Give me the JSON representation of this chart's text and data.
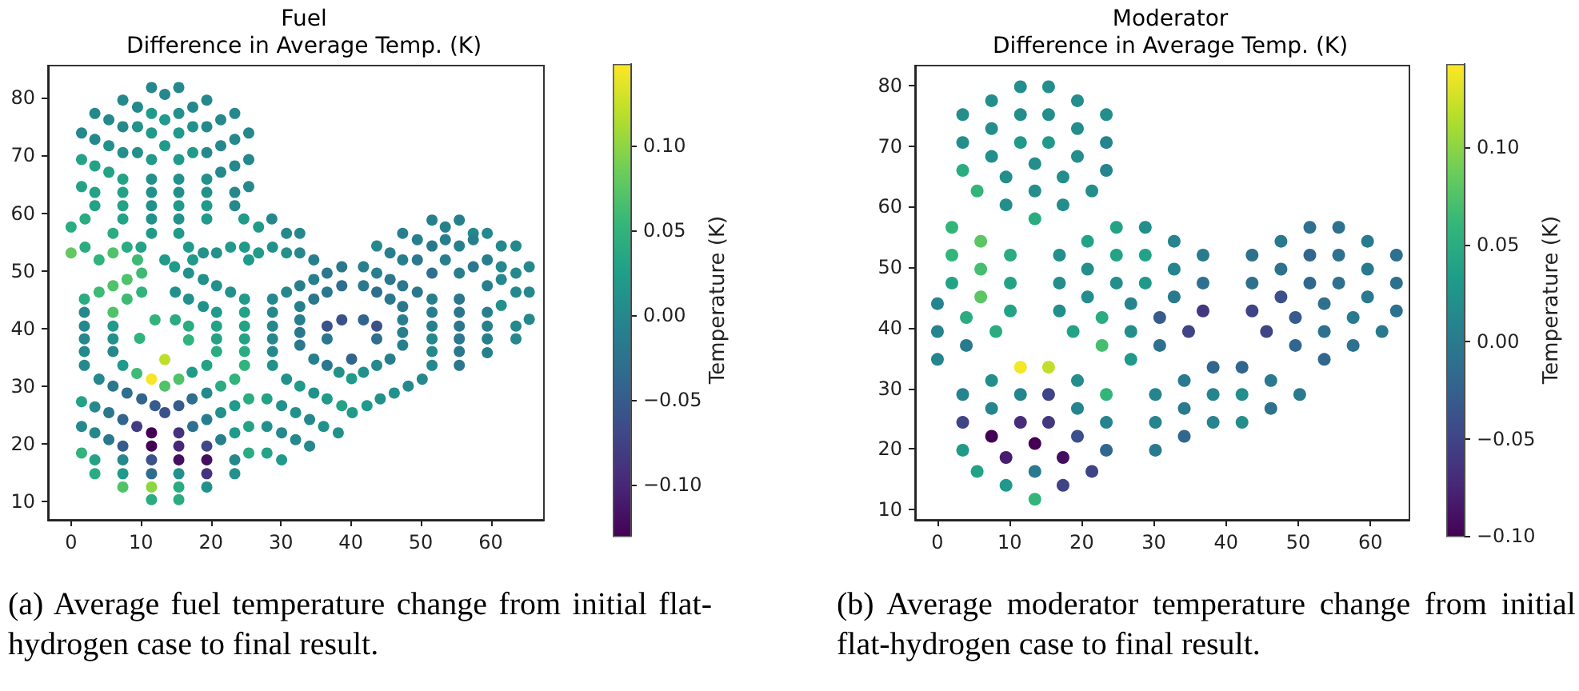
{
  "chart_data": [
    {
      "type": "scatter",
      "title": "Fuel",
      "subtitle": "Difference in Average Temp. (K)",
      "clabel": "Temperature (K)",
      "marker": "circle",
      "grid": false,
      "xlim": [
        -3.3,
        67.6
      ],
      "ylim": [
        6.8,
        85.6
      ],
      "xticks": [
        0,
        10,
        20,
        30,
        40,
        50,
        60
      ],
      "yticks": [
        10,
        20,
        30,
        40,
        50,
        60,
        70,
        80
      ],
      "clim": [
        -0.13,
        0.148
      ],
      "cticks": [
        {
          "value": -0.1,
          "label": "−0.10"
        },
        {
          "value": -0.05,
          "label": "−0.05"
        },
        {
          "value": 0,
          "label": "0.00"
        },
        {
          "value": 0.05,
          "label": "0.05"
        },
        {
          "value": 0.1,
          "label": "0.10"
        }
      ],
      "annotations": [
        "(a) Average fuel temperature change from initial flat-hydrogen case to final result."
      ],
      "x": [
        11.5,
        15.4,
        13.4,
        7.4,
        19.4,
        9.5,
        17.4,
        3.4,
        11.5,
        15.4,
        23.4,
        5.4,
        13.4,
        21.4,
        7.4,
        9.5,
        17.4,
        19.4,
        1.5,
        11.5,
        15.4,
        25.4,
        3.4,
        23.4,
        5.4,
        13.4,
        21.4,
        7.4,
        9.5,
        17.4,
        19.4,
        1.5,
        11.5,
        15.4,
        25.4,
        3.4,
        23.4,
        5.4,
        21.4,
        7.4,
        11.5,
        15.4,
        19.4,
        1.5,
        25.4,
        3.4,
        7.4,
        11.5,
        15.4,
        19.4,
        23.4,
        3.4,
        7.4,
        11.5,
        15.4,
        19.4,
        23.4,
        2,
        7.4,
        11.5,
        15.4,
        19.4,
        24.7,
        28.7,
        0,
        26.8,
        6,
        11.5,
        15.4,
        30.8,
        32.7,
        2,
        8,
        10,
        16.8,
        22.8,
        24.8,
        28.8,
        0,
        6,
        18.9,
        20.8,
        26.8,
        30.8,
        32.7,
        4,
        9.5,
        13.4,
        17.4,
        25.4,
        34.7,
        1.9,
        4,
        6,
        8,
        10.1,
        14.8,
        16.8,
        18.9,
        20.8,
        22.8,
        24.8,
        1.9,
        1.9,
        1.9,
        1.9,
        1.9,
        4,
        6,
        8,
        10.1,
        12,
        13.4,
        15.4,
        17.3,
        19.4,
        21.4,
        23.4,
        24.8,
        24.8,
        24.8,
        24.8,
        24.8,
        8,
        10.1,
        14.9,
        16.8,
        18.9,
        20.8,
        20.8,
        20.8,
        20.8,
        19.4,
        17.3,
        15.4,
        13.4,
        11.5,
        9.4,
        7.4,
        6,
        6,
        6,
        6,
        12,
        14.9,
        16.8,
        16.8,
        13.4,
        9.8,
        1.5,
        3.4,
        5.4,
        7.4,
        9.4,
        11.5,
        15.4,
        17.4,
        19.4,
        21.4,
        23.4,
        25.4,
        1.5,
        3.4,
        5.4,
        7.4,
        11.5,
        15.4,
        19.4,
        21.4,
        23.4,
        25.4,
        1.5,
        3.4,
        7.4,
        11.5,
        15.4,
        19.4,
        23.4,
        25.4,
        3.4,
        7.4,
        11.5,
        15.4,
        19.4,
        23.4,
        7.4,
        11.5,
        15.4,
        19.4,
        11.5,
        15.4,
        28,
        30.1,
        32.1,
        34.1,
        36.1,
        38.2,
        28,
        30.1,
        32.1,
        34.1,
        28,
        30.1,
        28.8,
        30.8,
        32.7,
        34.7,
        36.6,
        38.7,
        41.8,
        43.7,
        45.6,
        47.4,
        49.5,
        51.6,
        28.8,
        28.8,
        28.8,
        28.8,
        28.8,
        51.6,
        51.6,
        51.6,
        51.6,
        51.6,
        30.8,
        32.7,
        34.7,
        36.6,
        38.7,
        40.2,
        42.3,
        44.2,
        46.2,
        48.2,
        50.2,
        32.7,
        34.7,
        36.6,
        38.7,
        41.8,
        43.7,
        45.6,
        47.4,
        47.4,
        47.4,
        47.4,
        45.6,
        43.7,
        41.8,
        40.1,
        38.3,
        36.6,
        34.7,
        32.7,
        32.7,
        32.7,
        38.7,
        41.8,
        43.7,
        43.7,
        40.1,
        36.6,
        36.6,
        51.6,
        53.5,
        55.5,
        57.5,
        59.5,
        47.4,
        49.5,
        51.6,
        53.5,
        55.5,
        57.5,
        61.5,
        63.6,
        43.7,
        45.6,
        47.4,
        49.5,
        51.6,
        53.5,
        55.5,
        57.5,
        59.5,
        61.5,
        63.6,
        65.5,
        59.5,
        61.5,
        63.6,
        65.5,
        61.5,
        65.5,
        63.6,
        63.6,
        59.5,
        59.5,
        59.5,
        59.5,
        55.5,
        55.5,
        55.5,
        55.5,
        55.5,
        55.5
      ],
      "values": [
        81.8,
        81.8,
        80.6,
        79.6,
        79.6,
        78.4,
        78.4,
        77.3,
        77.3,
        77.3,
        77.3,
        76.2,
        76.2,
        76.2,
        75,
        75,
        75,
        75,
        73.9,
        73.9,
        73.9,
        73.9,
        72.8,
        72.8,
        71.7,
        71.7,
        71.7,
        70.5,
        70.5,
        70.5,
        70.5,
        69.3,
        69.3,
        69.3,
        69.3,
        68.2,
        68.2,
        67.1,
        67.1,
        65.9,
        65.9,
        65.9,
        65.9,
        64.6,
        64.6,
        63.6,
        63.6,
        63.6,
        63.6,
        63.6,
        63.6,
        61.3,
        61.3,
        61.3,
        61.3,
        61.3,
        61.3,
        59,
        59,
        59,
        59,
        59,
        59,
        59,
        57.6,
        57.6,
        56.5,
        56.5,
        56.5,
        56.5,
        56.5,
        54.1,
        54.1,
        54.1,
        54.1,
        54.1,
        54.1,
        54.1,
        53.1,
        53.1,
        53.1,
        53.1,
        53.1,
        53.1,
        53.1,
        51.9,
        51.9,
        51.9,
        51.9,
        51.9,
        51.9,
        45.1,
        46.3,
        47.4,
        48.5,
        49.6,
        50.7,
        49.6,
        48.5,
        47.4,
        46.3,
        45.1,
        42.8,
        40.4,
        38.2,
        36,
        33.6,
        31.2,
        30,
        28.8,
        27.8,
        26.6,
        25.4,
        26.6,
        27.8,
        28.8,
        30,
        31.2,
        42.8,
        40.4,
        38.2,
        36,
        33.6,
        45.1,
        46.3,
        46.3,
        45.1,
        43.8,
        42.8,
        40.4,
        38.2,
        36,
        33.6,
        32.4,
        31.2,
        30,
        31.2,
        32.2,
        33.6,
        36,
        38.2,
        40.4,
        42.8,
        41.5,
        41.5,
        40.4,
        38,
        34.6,
        38.3,
        27.3,
        26.4,
        25.4,
        24.2,
        23,
        21.9,
        21.9,
        23,
        24.2,
        25.4,
        26.6,
        27.8,
        23,
        21.9,
        20.7,
        19.6,
        19.6,
        19.6,
        19.6,
        20.7,
        21.9,
        23,
        18.4,
        17.2,
        17.2,
        17.2,
        17.2,
        17.2,
        17.2,
        18.4,
        14.8,
        14.8,
        14.8,
        14.8,
        14.8,
        14.8,
        12.5,
        12.5,
        12.5,
        12.5,
        10.3,
        10.3,
        27.8,
        26.6,
        25.4,
        24.2,
        23,
        21.9,
        23,
        21.9,
        20.7,
        19.6,
        18.4,
        17.2,
        45.1,
        46.3,
        47.4,
        48.5,
        49.6,
        50.7,
        50.7,
        49.6,
        48.5,
        47.4,
        46.3,
        45.1,
        42.8,
        40.4,
        38.2,
        36,
        33.6,
        42.8,
        40.4,
        38.2,
        36,
        33.6,
        31.2,
        30,
        28.8,
        27.8,
        26.6,
        25.4,
        26.6,
        27.8,
        28.8,
        30,
        31.2,
        43.8,
        45.1,
        46.3,
        47.4,
        47.4,
        46.3,
        45.1,
        43.8,
        41.5,
        39.3,
        37.1,
        34.7,
        33.6,
        32.4,
        31.3,
        32.4,
        33.6,
        34.7,
        37.1,
        39.3,
        41.5,
        41.5,
        41.5,
        40.4,
        38.2,
        34.7,
        40.4,
        38.2,
        58.8,
        57.6,
        58.8,
        56.5,
        56.5,
        56.5,
        55.4,
        54.3,
        55.4,
        54.3,
        55.4,
        54.3,
        54.3,
        54.3,
        53.1,
        51.9,
        51.9,
        49.6,
        51.9,
        49.6,
        50.7,
        51.9,
        50.7,
        49.6,
        50.7,
        47.4,
        48.5,
        46.3,
        46.3,
        44,
        41.6,
        40.4,
        38.2,
        42.8,
        40.4,
        38.2,
        35.8,
        45.1,
        42.8,
        40.4,
        38.2,
        36,
        33.6
      ],
      "cvalues": [
        0,
        0,
        0,
        0,
        0,
        0,
        0,
        0,
        0.02,
        0.01,
        0,
        0,
        0.02,
        0,
        0,
        0.01,
        0.01,
        0,
        0,
        0.02,
        0.02,
        0,
        0,
        0,
        0.01,
        0.02,
        0,
        0.01,
        0.01,
        0.02,
        0,
        0.03,
        0.02,
        0.02,
        0,
        0.03,
        0,
        0.03,
        0,
        0.03,
        0.01,
        0.01,
        0.01,
        0.03,
        0,
        0.03,
        0.03,
        0.01,
        0.01,
        0.01,
        0,
        0.03,
        0.03,
        0.01,
        0.02,
        0.02,
        0,
        0.04,
        0.03,
        0.01,
        0.01,
        0.02,
        0.02,
        0,
        0.04,
        0.02,
        0.04,
        0.02,
        0.02,
        0,
        0,
        0.04,
        0.04,
        0.03,
        0.02,
        0.02,
        0.02,
        0.01,
        0.08,
        0.07,
        0.01,
        0.01,
        0.02,
        0.01,
        0,
        0.05,
        0.06,
        0.02,
        0.02,
        0.02,
        -0.01,
        0.04,
        0.06,
        0.07,
        0.07,
        0.06,
        0.02,
        0.01,
        0.01,
        0.01,
        0.01,
        0.02,
        0,
        0,
        0,
        0,
        0,
        0,
        -0.02,
        -0.03,
        -0.04,
        -0.05,
        -0.06,
        -0.05,
        -0.03,
        0,
        0.04,
        0.05,
        0.03,
        0.03,
        0.03,
        0.04,
        0.05,
        0.06,
        0.05,
        0.01,
        0.01,
        0.01,
        0.02,
        0.03,
        0.03,
        0.04,
        0.03,
        0.02,
        0.07,
        0.07,
        0.145,
        0.06,
        0.02,
        0,
        0.01,
        0.02,
        0.07,
        0.05,
        0.04,
        0.04,
        0.05,
        0.12,
        0.05,
        0.03,
        0,
        -0.02,
        -0.04,
        -0.08,
        -0.13,
        -0.09,
        -0.03,
        -0.01,
        0.01,
        0.02,
        0.04,
        0,
        0,
        -0.02,
        -0.05,
        -0.13,
        -0.1,
        -0.07,
        -0.01,
        0.02,
        0.03,
        0.05,
        0.03,
        0,
        -0.06,
        -0.12,
        -0.12,
        0,
        0.04,
        0.04,
        0.02,
        -0.03,
        0.01,
        -0.09,
        0.01,
        0.07,
        0.1,
        0.04,
        0.01,
        0.04,
        0.04,
        0.03,
        0.01,
        0.01,
        0,
        0.01,
        0.01,
        0.01,
        0,
        0,
        0,
        0.03,
        0.02,
        0,
        0,
        -0.01,
        -0.01,
        -0.02,
        -0.02,
        -0.01,
        -0.01,
        -0.02,
        -0.02,
        -0.02,
        -0.01,
        0,
        0,
        0,
        0,
        0.01,
        -0.01,
        -0.01,
        0,
        0,
        0,
        0.01,
        0.02,
        0.01,
        0.02,
        0.03,
        0.02,
        0.02,
        0.01,
        0.01,
        0,
        0,
        -0.01,
        -0.02,
        -0.02,
        -0.03,
        -0.02,
        -0.03,
        -0.02,
        -0.02,
        -0.01,
        -0.01,
        -0.01,
        -0.01,
        0,
        0.01,
        0.02,
        0.01,
        -0.02,
        -0.01,
        -0.02,
        -0.02,
        -0.01,
        -0.06,
        -0.04,
        -0.06,
        -0.03,
        -0.04,
        -0.06,
        -0.02,
        -0.01,
        -0.01,
        -0.01,
        0,
        0,
        -0.01,
        -0.01,
        -0.02,
        -0.01,
        -0.01,
        -0.01,
        0,
        0,
        0,
        -0.01,
        -0.01,
        -0.02,
        -0.03,
        -0.01,
        -0.01,
        -0.02,
        -0.01,
        0,
        0,
        0,
        -0.01,
        0,
        0,
        0,
        0.01,
        0,
        0,
        0,
        -0.01,
        -0.01,
        -0.01,
        -0.01,
        -0.02,
        -0.02,
        -0.02,
        -0.02,
        -0.02,
        -0.02
      ]
    },
    {
      "type": "scatter",
      "title": "Moderator",
      "subtitle": "Difference in Average Temp. (K)",
      "clabel": "Temperature (K)",
      "marker": "circle",
      "grid": false,
      "xlim": [
        -3.1,
        65.4
      ],
      "ylim": [
        8.3,
        83.3
      ],
      "xticks": [
        0,
        10,
        20,
        30,
        40,
        50,
        60
      ],
      "yticks": [
        10,
        20,
        30,
        40,
        50,
        60,
        70,
        80
      ],
      "clim": [
        -0.1,
        0.143
      ],
      "cticks": [
        {
          "value": -0.1,
          "label": "−0.10"
        },
        {
          "value": -0.05,
          "label": "−0.05"
        },
        {
          "value": 0,
          "label": "0.00"
        },
        {
          "value": 0.05,
          "label": "0.05"
        },
        {
          "value": 0.1,
          "label": "0.10"
        }
      ],
      "annotations": [
        "(b) Average moderator temperature change from initial flat-hydrogen case to final result."
      ],
      "x": [
        11.5,
        15.4,
        7.5,
        19.4,
        3.5,
        11.5,
        15.4,
        23.4,
        7.5,
        19.4,
        3.5,
        11.5,
        15.4,
        23.4,
        7.5,
        13.5,
        19.4,
        3.5,
        9.5,
        17.4,
        23.4,
        5.5,
        13.5,
        21.4,
        9.5,
        17.4,
        13.5,
        2,
        6,
        2,
        10.1,
        6,
        2,
        10.1,
        6,
        0,
        10.1,
        4,
        0,
        8.1,
        4,
        0,
        24.8,
        28.8,
        20.8,
        32.8,
        16.9,
        24.8,
        28.8,
        36.8,
        20.8,
        32.8,
        16.9,
        24.8,
        28.8,
        36.8,
        20.8,
        26.8,
        32.8,
        16.9,
        36.8,
        22.8,
        30.8,
        18.8,
        26.8,
        34.8,
        22.8,
        30.8,
        26.8,
        51.6,
        55.6,
        47.6,
        59.6,
        43.6,
        51.6,
        55.6,
        63.6,
        47.6,
        59.6,
        43.6,
        51.6,
        55.6,
        63.6,
        47.6,
        59.6,
        53.6,
        43.6,
        63.6,
        49.6,
        57.6,
        45.6,
        53.6,
        61.6,
        49.6,
        57.6,
        53.6,
        11.5,
        15.4,
        7.5,
        19.4,
        3.5,
        11.5,
        15.4,
        23.4,
        7.5,
        19.4,
        3.5,
        11.5,
        15.4,
        23.4,
        7.5,
        13.5,
        19.4,
        3.5,
        9.5,
        17.4,
        23.4,
        5.5,
        13.5,
        21.4,
        9.5,
        17.4,
        13.5,
        38.2,
        42.2,
        34.2,
        46.2,
        30.2,
        38.2,
        42.2,
        50.2,
        34.2,
        46.2,
        30.2,
        38.2,
        42.2,
        34.2,
        30.2
      ],
      "values": [
        79.8,
        79.8,
        77.5,
        77.5,
        75.2,
        75.2,
        75.2,
        75.2,
        72.9,
        72.9,
        70.6,
        70.6,
        70.6,
        70.6,
        68.3,
        67.1,
        68.3,
        66,
        64.9,
        64.9,
        66,
        62.6,
        62.6,
        62.6,
        60.3,
        60.3,
        58,
        56.6,
        54.3,
        52,
        52,
        49.7,
        47.4,
        47.4,
        45.1,
        44,
        42.8,
        41.7,
        39.4,
        39.4,
        37.1,
        34.8,
        56.6,
        56.6,
        54.3,
        54.3,
        52,
        52,
        52,
        52,
        49.7,
        49.7,
        47.4,
        47.4,
        47.4,
        47.4,
        45.1,
        44,
        45.1,
        42.8,
        42.8,
        41.7,
        41.7,
        39.4,
        39.4,
        39.4,
        37.1,
        37.1,
        34.8,
        56.6,
        56.6,
        54.3,
        54.3,
        52,
        52,
        52,
        52,
        49.7,
        49.7,
        47.4,
        47.4,
        47.4,
        47.4,
        45.1,
        45.1,
        44,
        42.8,
        42.8,
        41.7,
        41.7,
        39.4,
        39.4,
        39.4,
        37.1,
        37.1,
        34.8,
        33.5,
        33.5,
        31.3,
        31.3,
        29,
        29,
        29,
        29,
        26.7,
        26.7,
        24.4,
        24.4,
        24.4,
        24.4,
        22.1,
        20.9,
        22.1,
        19.8,
        18.6,
        18.6,
        19.8,
        16.3,
        16.3,
        16.3,
        14,
        14,
        11.7,
        33.5,
        33.5,
        31.3,
        31.3,
        29,
        29,
        29,
        29,
        26.7,
        26.7,
        24.4,
        24.4,
        24.4,
        22.1,
        19.8
      ],
      "cvalues": [
        0.02,
        0.02,
        0.02,
        0.02,
        0.02,
        0.02,
        0.02,
        0.02,
        0.02,
        0.02,
        0.02,
        0.03,
        0.03,
        0.01,
        0.02,
        0.02,
        0.02,
        0.05,
        0.02,
        0.02,
        0.01,
        0.06,
        0.02,
        0.02,
        0.02,
        0.02,
        0.05,
        0.06,
        0.08,
        0.06,
        0.05,
        0.07,
        0.04,
        0.04,
        0.08,
        0.01,
        0.04,
        0.05,
        0.01,
        0.05,
        0,
        0.01,
        0.04,
        0.02,
        0.04,
        0.01,
        0.02,
        0.04,
        0.04,
        0,
        0.02,
        0.01,
        0.02,
        0.02,
        0.03,
        -0.01,
        0.02,
        0.01,
        0,
        0.02,
        -0.06,
        0.05,
        -0.03,
        0.04,
        0.02,
        -0.05,
        0.07,
        -0.01,
        0.03,
        -0.01,
        -0.01,
        0,
        0,
        -0.01,
        -0.02,
        -0.01,
        -0.01,
        -0.01,
        0,
        -0.01,
        -0.02,
        -0.01,
        -0.01,
        -0.04,
        0,
        -0.01,
        -0.05,
        -0.01,
        -0.03,
        0,
        -0.05,
        -0.01,
        0,
        -0.02,
        -0.01,
        -0.02,
        0.14,
        0.12,
        0.02,
        0.02,
        0.01,
        0.01,
        -0.05,
        0.06,
        0.01,
        0.01,
        -0.05,
        -0.07,
        -0.06,
        0.01,
        -0.1,
        -0.1,
        -0.04,
        0.03,
        -0.08,
        -0.09,
        -0.02,
        0.04,
        0,
        -0.05,
        0.03,
        -0.05,
        0.06,
        -0.02,
        -0.02,
        0,
        0,
        0.01,
        0.01,
        0.02,
        0,
        0,
        -0.01,
        0.01,
        0.01,
        0.02,
        -0.02,
        0
      ]
    }
  ]
}
